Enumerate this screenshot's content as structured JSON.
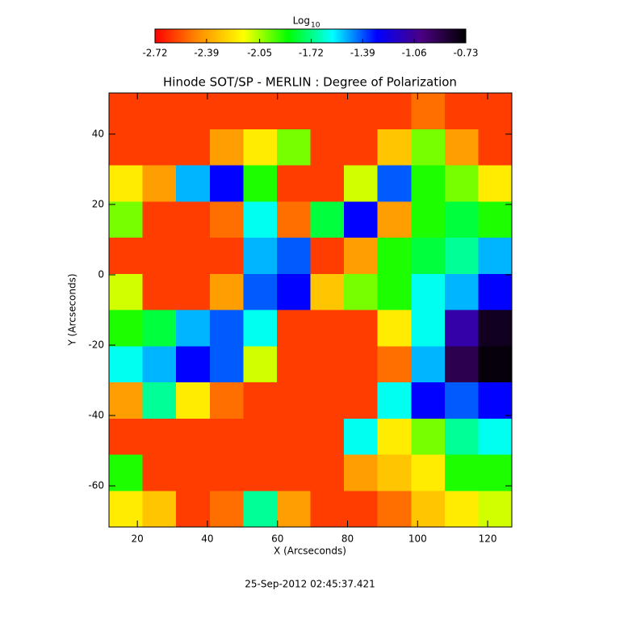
{
  "chart_data": {
    "type": "heatmap",
    "title": "Hinode SOT/SP - MERLIN : Degree of Polarization",
    "x_label": "X (Arcseconds)",
    "y_label": "Y (Arcseconds)",
    "footer": "25-Sep-2012 02:45:37.421",
    "colorbar_label": {
      "text": "Log",
      "subscript": "10"
    },
    "colormap": [
      "#ff0000",
      "#ff9000",
      "#ffff00",
      "#00ff00",
      "#00ffff",
      "#0000ff",
      "#4b0082",
      "#000000"
    ],
    "zlim": [
      -2.72,
      -0.73
    ],
    "zticks": [
      -2.72,
      -2.39,
      -2.05,
      -1.72,
      -1.39,
      -1.06,
      -0.73
    ],
    "xlim": [
      11.9,
      126.9
    ],
    "xticks": [
      20,
      40,
      60,
      80,
      100,
      120
    ],
    "ylim": [
      -71.7,
      51.7
    ],
    "yticks": [
      -60,
      -40,
      -20,
      0,
      20,
      40
    ],
    "z": [
      [
        -2.6,
        -2.6,
        -2.6,
        -2.6,
        -2.6,
        -2.6,
        -2.6,
        -2.6,
        -2.6,
        -2.5,
        -2.6,
        -2.6
      ],
      [
        -2.6,
        -2.6,
        -2.6,
        -2.4,
        -2.2,
        -2.0,
        -2.6,
        -2.6,
        -2.3,
        -2.0,
        -2.4,
        -2.6
      ],
      [
        -2.2,
        -2.4,
        -1.5,
        -1.3,
        -1.9,
        -2.6,
        -2.6,
        -2.1,
        -1.4,
        -1.9,
        -2.0,
        -2.2
      ],
      [
        -2.0,
        -2.6,
        -2.6,
        -2.5,
        -1.6,
        -2.5,
        -1.8,
        -1.3,
        -2.4,
        -1.9,
        -1.8,
        -1.9
      ],
      [
        -2.6,
        -2.6,
        -2.6,
        -2.6,
        -1.5,
        -1.4,
        -2.6,
        -2.4,
        -1.9,
        -1.8,
        -1.7,
        -1.5
      ],
      [
        -2.1,
        -2.6,
        -2.6,
        -2.4,
        -1.4,
        -1.3,
        -2.3,
        -2.0,
        -1.9,
        -1.6,
        -1.5,
        -1.3
      ],
      [
        -1.9,
        -1.8,
        -1.5,
        -1.4,
        -1.6,
        -2.6,
        -2.6,
        -2.6,
        -2.2,
        -1.6,
        -1.1,
        -0.8
      ],
      [
        -1.6,
        -1.5,
        -1.3,
        -1.4,
        -2.1,
        -2.6,
        -2.6,
        -2.6,
        -2.5,
        -1.5,
        -0.9,
        -0.75
      ],
      [
        -2.4,
        -1.7,
        -2.2,
        -2.5,
        -2.6,
        -2.6,
        -2.6,
        -2.6,
        -1.6,
        -1.3,
        -1.4,
        -1.3
      ],
      [
        -2.6,
        -2.6,
        -2.6,
        -2.6,
        -2.6,
        -2.6,
        -2.6,
        -1.6,
        -2.2,
        -2.0,
        -1.7,
        -1.6
      ],
      [
        -1.9,
        -2.6,
        -2.6,
        -2.6,
        -2.6,
        -2.6,
        -2.6,
        -2.4,
        -2.3,
        -2.2,
        -1.9,
        -1.9
      ],
      [
        -2.2,
        -2.3,
        -2.6,
        -2.5,
        -1.7,
        -2.4,
        -2.6,
        -2.6,
        -2.5,
        -2.3,
        -2.2,
        -2.1
      ]
    ]
  }
}
